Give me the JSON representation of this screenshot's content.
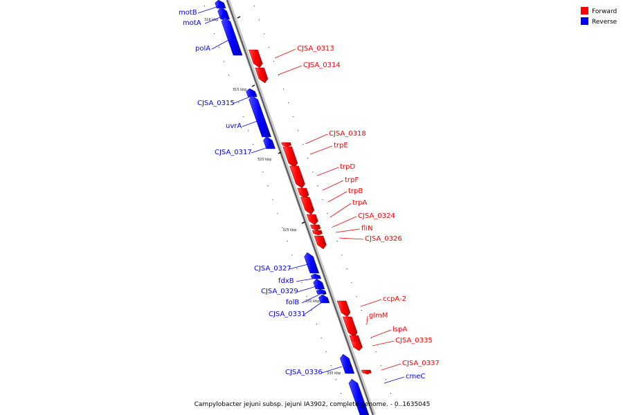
{
  "legend": {
    "forward": {
      "label": "Forward",
      "color": "#ff0000"
    },
    "reverse": {
      "label": "Reverse",
      "color": "#0000ff"
    }
  },
  "caption": "Campylobacter jejuni subsp. jejuni IA3902, complete genome. - 0..1635045",
  "ticks": [
    "310 kbp",
    "315 kbp",
    "320 kbp",
    "325 kbp",
    "330 kbp",
    "335 kbp"
  ],
  "genes": [
    {
      "name": "motB",
      "strand": "reverse"
    },
    {
      "name": "motA",
      "strand": "reverse"
    },
    {
      "name": "polA",
      "strand": "reverse"
    },
    {
      "name": "CJSA_0313",
      "strand": "forward"
    },
    {
      "name": "CJSA_0314",
      "strand": "forward"
    },
    {
      "name": "CJSA_0315",
      "strand": "reverse"
    },
    {
      "name": "uvrA",
      "strand": "reverse"
    },
    {
      "name": "CJSA_0317",
      "strand": "reverse"
    },
    {
      "name": "CJSA_0318",
      "strand": "forward"
    },
    {
      "name": "trpE",
      "strand": "forward"
    },
    {
      "name": "trpD",
      "strand": "forward"
    },
    {
      "name": "trpF",
      "strand": "forward"
    },
    {
      "name": "trpB",
      "strand": "forward"
    },
    {
      "name": "trpA",
      "strand": "forward"
    },
    {
      "name": "CJSA_0324",
      "strand": "forward"
    },
    {
      "name": "fliN",
      "strand": "forward"
    },
    {
      "name": "CJSA_0326",
      "strand": "forward"
    },
    {
      "name": "CJSA_0327",
      "strand": "reverse"
    },
    {
      "name": "fdxB",
      "strand": "reverse"
    },
    {
      "name": "CJSA_0329",
      "strand": "reverse"
    },
    {
      "name": "folB",
      "strand": "reverse"
    },
    {
      "name": "CJSA_0331",
      "strand": "reverse"
    },
    {
      "name": "ccpA-2",
      "strand": "forward"
    },
    {
      "name": "glmM",
      "strand": "forward"
    },
    {
      "name": "lspA",
      "strand": "forward"
    },
    {
      "name": "CJSA_0335",
      "strand": "forward"
    },
    {
      "name": "CJSA_0336",
      "strand": "reverse"
    },
    {
      "name": "CJSA_0337",
      "strand": "forward"
    },
    {
      "name": "cmeC",
      "strand": "reverse"
    }
  ]
}
